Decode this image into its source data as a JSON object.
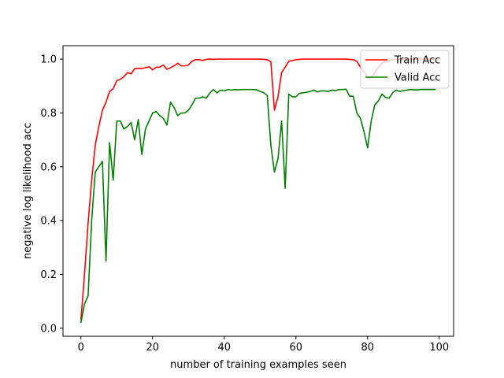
{
  "chart_data": {
    "type": "line",
    "xlabel": "number of training examples seen",
    "ylabel": "negative log likelihood acc",
    "xlim": [
      -5,
      104
    ],
    "ylim": [
      -0.03,
      1.05
    ],
    "xticks": [
      0,
      20,
      40,
      60,
      80,
      100
    ],
    "yticks": [
      0.0,
      0.2,
      0.4,
      0.6,
      0.8,
      1.0
    ],
    "xtick_labels": [
      "0",
      "20",
      "40",
      "60",
      "80",
      "100"
    ],
    "ytick_labels": [
      "0.0",
      "0.2",
      "0.4",
      "0.6",
      "0.8",
      "1.0"
    ],
    "grid": false,
    "legend_position": "top-right",
    "x": [
      0,
      1,
      2,
      3,
      4,
      5,
      6,
      7,
      8,
      9,
      10,
      11,
      12,
      13,
      14,
      15,
      16,
      17,
      18,
      19,
      20,
      21,
      22,
      23,
      24,
      25,
      26,
      27,
      28,
      29,
      30,
      31,
      32,
      33,
      34,
      35,
      36,
      37,
      38,
      39,
      40,
      41,
      42,
      43,
      44,
      45,
      46,
      47,
      48,
      49,
      50,
      51,
      52,
      53,
      54,
      55,
      56,
      57,
      58,
      59,
      60,
      61,
      62,
      63,
      64,
      65,
      66,
      67,
      68,
      69,
      70,
      71,
      72,
      73,
      74,
      75,
      76,
      77,
      78,
      79,
      80,
      81,
      82,
      83,
      84,
      85,
      86,
      87,
      88,
      89,
      90,
      91,
      92,
      93,
      94,
      95,
      96,
      97,
      98,
      99
    ],
    "series": [
      {
        "name": "Train Acc",
        "color": "#ff0000",
        "values": [
          0.03,
          0.2,
          0.39,
          0.55,
          0.68,
          0.75,
          0.81,
          0.84,
          0.88,
          0.89,
          0.92,
          0.925,
          0.935,
          0.95,
          0.945,
          0.965,
          0.965,
          0.965,
          0.968,
          0.972,
          0.96,
          0.97,
          0.97,
          0.978,
          0.962,
          0.968,
          0.975,
          0.985,
          0.975,
          0.975,
          0.978,
          0.992,
          0.998,
          0.998,
          0.995,
          0.999,
          1.0,
          0.999,
          1.0,
          1.0,
          1.0,
          1.0,
          1.0,
          1.0,
          1.0,
          1.0,
          1.0,
          1.0,
          1.0,
          1.0,
          1.0,
          0.999,
          0.998,
          0.99,
          0.81,
          0.86,
          0.95,
          0.97,
          0.992,
          0.995,
          0.998,
          0.999,
          1.0,
          1.0,
          1.0,
          1.0,
          1.0,
          1.0,
          1.0,
          1.0,
          1.0,
          1.0,
          1.0,
          1.0,
          1.0,
          0.999,
          0.998,
          0.992,
          0.97,
          0.955,
          0.93,
          0.93,
          0.95,
          0.97,
          0.985,
          0.99,
          0.995,
          0.998,
          0.999,
          1.0,
          1.0,
          1.0,
          1.0,
          1.0,
          1.0,
          1.0,
          1.0,
          1.0,
          1.0,
          1.0
        ]
      },
      {
        "name": "Valid Acc",
        "color": "#008000",
        "values": [
          0.02,
          0.09,
          0.12,
          0.4,
          0.58,
          0.6,
          0.62,
          0.25,
          0.69,
          0.55,
          0.77,
          0.77,
          0.74,
          0.75,
          0.765,
          0.7,
          0.775,
          0.645,
          0.74,
          0.77,
          0.8,
          0.805,
          0.79,
          0.78,
          0.755,
          0.84,
          0.82,
          0.79,
          0.8,
          0.8,
          0.81,
          0.83,
          0.855,
          0.855,
          0.86,
          0.855,
          0.875,
          0.887,
          0.875,
          0.885,
          0.882,
          0.887,
          0.885,
          0.887,
          0.886,
          0.887,
          0.887,
          0.887,
          0.887,
          0.886,
          0.88,
          0.875,
          0.865,
          0.68,
          0.58,
          0.63,
          0.77,
          0.52,
          0.87,
          0.86,
          0.86,
          0.873,
          0.875,
          0.877,
          0.88,
          0.885,
          0.878,
          0.882,
          0.882,
          0.88,
          0.885,
          0.883,
          0.887,
          0.887,
          0.888,
          0.862,
          0.862,
          0.8,
          0.78,
          0.73,
          0.67,
          0.77,
          0.83,
          0.845,
          0.87,
          0.858,
          0.855,
          0.875,
          0.885,
          0.88,
          0.883,
          0.885,
          0.887,
          0.886,
          0.886,
          0.887,
          0.887,
          0.887,
          0.887,
          0.887
        ]
      }
    ]
  }
}
